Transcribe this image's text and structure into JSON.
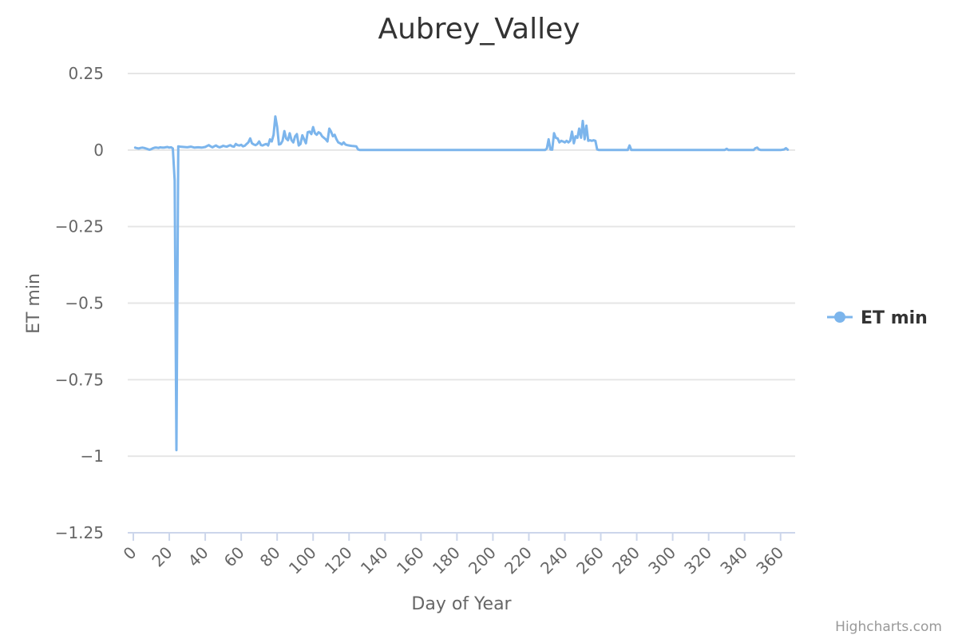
{
  "credits": "Highcharts.com",
  "chart_data": {
    "type": "line",
    "title": "Aubrey_Valley",
    "xlabel": "Day of Year",
    "ylabel": "ET min",
    "xlim": [
      0,
      365
    ],
    "ylim": [
      -1.25,
      0.25
    ],
    "x_ticks": [
      0,
      20,
      40,
      60,
      80,
      100,
      120,
      140,
      160,
      180,
      200,
      220,
      240,
      260,
      280,
      300,
      320,
      340,
      360
    ],
    "y_ticks": [
      0.25,
      0,
      -0.25,
      -0.5,
      -0.75,
      -1,
      -1.25
    ],
    "y_tick_labels": [
      "0.25",
      "0",
      "−0.25",
      "−0.5",
      "−0.75",
      "−1",
      "−1.25"
    ],
    "grid": true,
    "legend_position": "right",
    "series_color": "#7cb5ec",
    "series": [
      {
        "name": "ET min",
        "points": [
          [
            1,
            0.008
          ],
          [
            2,
            0.006
          ],
          [
            3,
            0.005
          ],
          [
            4,
            0.007
          ],
          [
            5,
            0.008
          ],
          [
            6,
            0.007
          ],
          [
            7,
            0.005
          ],
          [
            8,
            0.003
          ],
          [
            9,
            0.001
          ],
          [
            10,
            0.003
          ],
          [
            11,
            0.006
          ],
          [
            12,
            0.008
          ],
          [
            13,
            0.008
          ],
          [
            14,
            0.007
          ],
          [
            15,
            0.009
          ],
          [
            16,
            0.008
          ],
          [
            17,
            0.008
          ],
          [
            18,
            0.009
          ],
          [
            19,
            0.01
          ],
          [
            20,
            0.008
          ],
          [
            21,
            0.009
          ],
          [
            22,
            0.005
          ],
          [
            23,
            -0.1
          ],
          [
            24,
            -0.98
          ],
          [
            25,
            0.012
          ],
          [
            26,
            0.011
          ],
          [
            28,
            0.01
          ],
          [
            30,
            0.009
          ],
          [
            32,
            0.011
          ],
          [
            34,
            0.008
          ],
          [
            36,
            0.009
          ],
          [
            38,
            0.008
          ],
          [
            40,
            0.01
          ],
          [
            41,
            0.013
          ],
          [
            42,
            0.016
          ],
          [
            43,
            0.012
          ],
          [
            44,
            0.009
          ],
          [
            45,
            0.012
          ],
          [
            46,
            0.015
          ],
          [
            47,
            0.011
          ],
          [
            48,
            0.009
          ],
          [
            49,
            0.011
          ],
          [
            50,
            0.014
          ],
          [
            51,
            0.012
          ],
          [
            52,
            0.011
          ],
          [
            53,
            0.014
          ],
          [
            54,
            0.016
          ],
          [
            55,
            0.012
          ],
          [
            56,
            0.011
          ],
          [
            57,
            0.02
          ],
          [
            58,
            0.016
          ],
          [
            59,
            0.015
          ],
          [
            60,
            0.017
          ],
          [
            61,
            0.012
          ],
          [
            62,
            0.014
          ],
          [
            63,
            0.02
          ],
          [
            64,
            0.025
          ],
          [
            65,
            0.038
          ],
          [
            66,
            0.022
          ],
          [
            67,
            0.018
          ],
          [
            68,
            0.016
          ],
          [
            69,
            0.02
          ],
          [
            70,
            0.028
          ],
          [
            71,
            0.016
          ],
          [
            72,
            0.015
          ],
          [
            73,
            0.018
          ],
          [
            74,
            0.02
          ],
          [
            75,
            0.015
          ],
          [
            76,
            0.035
          ],
          [
            77,
            0.028
          ],
          [
            78,
            0.05
          ],
          [
            79,
            0.11
          ],
          [
            80,
            0.075
          ],
          [
            81,
            0.018
          ],
          [
            82,
            0.02
          ],
          [
            83,
            0.03
          ],
          [
            84,
            0.062
          ],
          [
            85,
            0.038
          ],
          [
            86,
            0.032
          ],
          [
            87,
            0.055
          ],
          [
            88,
            0.032
          ],
          [
            89,
            0.025
          ],
          [
            90,
            0.045
          ],
          [
            91,
            0.052
          ],
          [
            92,
            0.015
          ],
          [
            93,
            0.02
          ],
          [
            94,
            0.048
          ],
          [
            95,
            0.035
          ],
          [
            96,
            0.022
          ],
          [
            97,
            0.058
          ],
          [
            98,
            0.06
          ],
          [
            99,
            0.052
          ],
          [
            100,
            0.075
          ],
          [
            101,
            0.055
          ],
          [
            102,
            0.05
          ],
          [
            103,
            0.058
          ],
          [
            104,
            0.055
          ],
          [
            105,
            0.045
          ],
          [
            106,
            0.04
          ],
          [
            107,
            0.035
          ],
          [
            108,
            0.028
          ],
          [
            109,
            0.07
          ],
          [
            110,
            0.06
          ],
          [
            111,
            0.045
          ],
          [
            112,
            0.05
          ],
          [
            113,
            0.035
          ],
          [
            114,
            0.025
          ],
          [
            115,
            0.022
          ],
          [
            116,
            0.018
          ],
          [
            117,
            0.025
          ],
          [
            118,
            0.018
          ],
          [
            119,
            0.016
          ],
          [
            120,
            0.015
          ],
          [
            121,
            0.014
          ],
          [
            122,
            0.013
          ],
          [
            124,
            0.012
          ],
          [
            125,
            0.002
          ],
          [
            126,
            0.0
          ],
          [
            140,
            0.0
          ],
          [
            160,
            0.0
          ],
          [
            180,
            0.0
          ],
          [
            200,
            0.0
          ],
          [
            220,
            0.0
          ],
          [
            229,
            0.0
          ],
          [
            230,
            0.005
          ],
          [
            231,
            0.035
          ],
          [
            232,
            0.002
          ],
          [
            233,
            0.001
          ],
          [
            234,
            0.055
          ],
          [
            235,
            0.04
          ],
          [
            236,
            0.038
          ],
          [
            237,
            0.025
          ],
          [
            238,
            0.03
          ],
          [
            239,
            0.028
          ],
          [
            240,
            0.025
          ],
          [
            241,
            0.03
          ],
          [
            242,
            0.025
          ],
          [
            243,
            0.03
          ],
          [
            244,
            0.06
          ],
          [
            245,
            0.022
          ],
          [
            246,
            0.045
          ],
          [
            247,
            0.04
          ],
          [
            248,
            0.07
          ],
          [
            249,
            0.04
          ],
          [
            250,
            0.095
          ],
          [
            251,
            0.035
          ],
          [
            252,
            0.08
          ],
          [
            253,
            0.03
          ],
          [
            254,
            0.032
          ],
          [
            255,
            0.03
          ],
          [
            256,
            0.032
          ],
          [
            257,
            0.03
          ],
          [
            258,
            0.002
          ],
          [
            259,
            0.0
          ],
          [
            260,
            0.0
          ],
          [
            275,
            0.0
          ],
          [
            276,
            0.015
          ],
          [
            277,
            0.0
          ],
          [
            290,
            0.0
          ],
          [
            310,
            0.0
          ],
          [
            329,
            0.0
          ],
          [
            330,
            0.004
          ],
          [
            331,
            0.0
          ],
          [
            345,
            0.0
          ],
          [
            346,
            0.006
          ],
          [
            347,
            0.008
          ],
          [
            348,
            0.002
          ],
          [
            349,
            0.0
          ],
          [
            360,
            0.0
          ],
          [
            362,
            0.002
          ],
          [
            363,
            0.006
          ],
          [
            364,
            0.001
          ]
        ]
      }
    ]
  }
}
